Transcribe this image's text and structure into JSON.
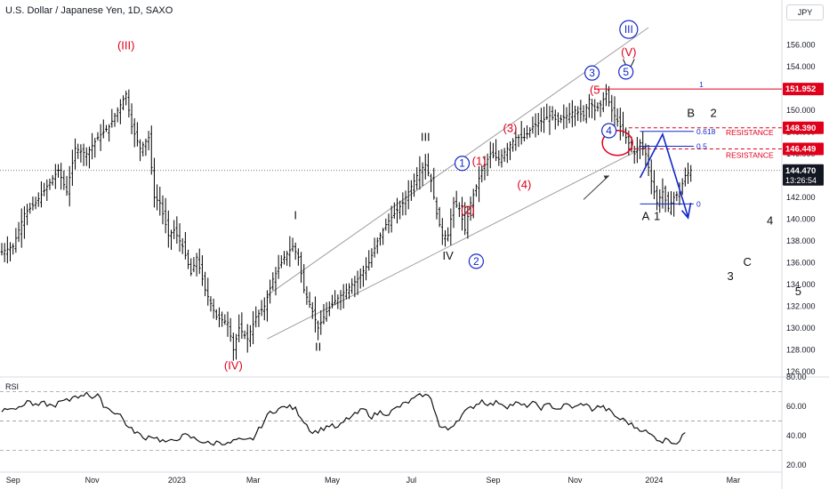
{
  "header": {
    "title": "U.S. Dollar / Japanese Yen, 1D, SAXO",
    "currency": "JPY"
  },
  "colors": {
    "candle": "#000000",
    "channel": "#9e9e9e",
    "red": "#e0001b",
    "blue": "#1328c9",
    "black": "#111111"
  },
  "chart_data": {
    "type": "line",
    "x_ticks": [
      "Sep",
      "Nov",
      "2023",
      "Mar",
      "May",
      "Jul",
      "Sep",
      "Nov",
      "2024",
      "Mar"
    ],
    "price_axis": {
      "ylim": [
        125.5,
        158.5
      ],
      "ticks": [
        "156.000",
        "154.000",
        "152.000",
        "150.000",
        "148.000",
        "146.000",
        "144.000",
        "142.000",
        "140.000",
        "138.000",
        "136.000",
        "134.000",
        "132.000",
        "130.000",
        "128.000",
        "126.000"
      ]
    },
    "price_path": [
      [
        0,
        137.0
      ],
      [
        4,
        137.5
      ],
      [
        8,
        140.5
      ],
      [
        12,
        141.5
      ],
      [
        16,
        143.0
      ],
      [
        20,
        144.5
      ],
      [
        23,
        142.5
      ],
      [
        26,
        146.5
      ],
      [
        30,
        146.0
      ],
      [
        34,
        147.5
      ],
      [
        38,
        148.5
      ],
      [
        41,
        150.0
      ],
      [
        44,
        151.5
      ],
      [
        46,
        148.5
      ],
      [
        49,
        146.5
      ],
      [
        52,
        147.5
      ],
      [
        54,
        142.0
      ],
      [
        56,
        141.5
      ],
      [
        59,
        138.5
      ],
      [
        61,
        139.0
      ],
      [
        64,
        137.5
      ],
      [
        67,
        135.0
      ],
      [
        69,
        136.5
      ],
      [
        72,
        133.5
      ],
      [
        76,
        131.0
      ],
      [
        80,
        130.5
      ],
      [
        82,
        128.0
      ],
      [
        84,
        130.0
      ],
      [
        87,
        129.0
      ],
      [
        90,
        131.0
      ],
      [
        93,
        132.0
      ],
      [
        96,
        134.5
      ],
      [
        100,
        136.5
      ],
      [
        103,
        137.5
      ],
      [
        105,
        136.5
      ],
      [
        107,
        133.5
      ],
      [
        110,
        131.5
      ],
      [
        112,
        130.0
      ],
      [
        115,
        131.5
      ],
      [
        118,
        132.5
      ],
      [
        122,
        133.5
      ],
      [
        126,
        134.5
      ],
      [
        130,
        136.0
      ],
      [
        133,
        138.0
      ],
      [
        136,
        139.5
      ],
      [
        139,
        140.5
      ],
      [
        142,
        141.5
      ],
      [
        145,
        143.0
      ],
      [
        148,
        144.5
      ],
      [
        150,
        145.0
      ],
      [
        152,
        143.5
      ],
      [
        154,
        140.5
      ],
      [
        156,
        138.5
      ],
      [
        158,
        138.5
      ],
      [
        160,
        141.5
      ],
      [
        162,
        141.0
      ],
      [
        164,
        139.0
      ],
      [
        166,
        141.5
      ],
      [
        168,
        143.0
      ],
      [
        170,
        144.5
      ],
      [
        173,
        146.0
      ],
      [
        176,
        145.5
      ],
      [
        179,
        146.5
      ],
      [
        182,
        147.5
      ],
      [
        185,
        147.5
      ],
      [
        188,
        148.5
      ],
      [
        191,
        149.0
      ],
      [
        194,
        149.5
      ],
      [
        197,
        149.0
      ],
      [
        200,
        149.5
      ],
      [
        203,
        150.0
      ],
      [
        206,
        149.5
      ],
      [
        208,
        151.0
      ],
      [
        210,
        150.0
      ],
      [
        212,
        150.5
      ],
      [
        214,
        151.5
      ],
      [
        216,
        150.0
      ],
      [
        218,
        149.0
      ],
      [
        220,
        148.0
      ],
      [
        222,
        147.0
      ],
      [
        224,
        146.0
      ],
      [
        226,
        147.0
      ],
      [
        228,
        146.0
      ],
      [
        230,
        143.5
      ],
      [
        232,
        141.5
      ],
      [
        234,
        142.5
      ],
      [
        236,
        141.0
      ],
      [
        238,
        142.0
      ],
      [
        240,
        142.5
      ],
      [
        242,
        144.0
      ],
      [
        244,
        144.5
      ]
    ],
    "last_price": "144.470",
    "countdown": "13:26:54",
    "levels": {
      "level_1": {
        "price": 151.952,
        "label": "151.952",
        "fib": "1"
      },
      "resistance_high": {
        "price": 148.39,
        "label": "148.390",
        "fib": "0.618",
        "text": "RESISTANCE"
      },
      "resistance_low": {
        "price": 146.449,
        "label": "146.449",
        "fib": "0.5",
        "text": "RESISTANCE"
      },
      "fib_zero": {
        "price": 141.4,
        "fib": "0"
      }
    },
    "wave_labels": [
      {
        "text": "(III)",
        "t": 44,
        "p": 155.6,
        "color": "red"
      },
      {
        "text": "(IV)",
        "t": 82,
        "p": 126.2,
        "color": "red"
      },
      {
        "text": "I",
        "t": 104,
        "p": 140.0,
        "color": "black"
      },
      {
        "text": "II",
        "t": 112,
        "p": 127.9,
        "color": "black"
      },
      {
        "text": "III",
        "t": 150,
        "p": 147.2,
        "color": "black"
      },
      {
        "text": "IV",
        "t": 158,
        "p": 136.3,
        "color": "black"
      },
      {
        "text": "(1)",
        "t": 169,
        "p": 145.0,
        "color": "red"
      },
      {
        "text": "(2)",
        "t": 165,
        "p": 140.5,
        "color": "red"
      },
      {
        "text": "(3)",
        "t": 180,
        "p": 148.0,
        "color": "red"
      },
      {
        "text": "(4)",
        "t": 185,
        "p": 142.8,
        "color": "red"
      },
      {
        "text": "(5",
        "t": 210,
        "p": 151.5,
        "color": "red"
      },
      {
        "text": "(V)",
        "t": 222,
        "p": 155.0,
        "color": "red"
      },
      {
        "text": "1",
        "t": 232,
        "p": 139.9,
        "color": "black"
      },
      {
        "text": "A",
        "t": 228,
        "p": 139.9,
        "color": "black"
      },
      {
        "text": "B",
        "t": 244,
        "p": 149.4,
        "color": "black"
      },
      {
        "text": "2",
        "t": 252,
        "p": 149.4,
        "color": "black"
      },
      {
        "text": "3",
        "t": 258,
        "p": 134.4,
        "color": "black"
      },
      {
        "text": "4",
        "t": 272,
        "p": 139.5,
        "color": "black"
      },
      {
        "text": "5",
        "t": 282,
        "p": 133.0,
        "color": "black"
      },
      {
        "text": "C",
        "t": 264,
        "p": 135.7,
        "color": "black"
      }
    ],
    "circled_labels": [
      {
        "text": "1",
        "t": 163,
        "p": 144.8
      },
      {
        "text": "2",
        "t": 168,
        "p": 135.8
      },
      {
        "text": "3",
        "t": 209,
        "p": 153.1
      },
      {
        "text": "4",
        "t": 215,
        "p": 147.8
      },
      {
        "text": "5",
        "t": 221,
        "p": 153.2
      },
      {
        "text": "III",
        "t": 222,
        "p": 157.1
      }
    ],
    "rsi": {
      "label": "RSI",
      "ylim": [
        15,
        80
      ],
      "ticks": [
        "80.00",
        "60.00",
        "40.00",
        "20.00"
      ],
      "path": [
        [
          0,
          57
        ],
        [
          3,
          60
        ],
        [
          6,
          58
        ],
        [
          9,
          64
        ],
        [
          12,
          60
        ],
        [
          15,
          62
        ],
        [
          18,
          60
        ],
        [
          21,
          63
        ],
        [
          24,
          64
        ],
        [
          26,
          68
        ],
        [
          28,
          66
        ],
        [
          30,
          70
        ],
        [
          32,
          66
        ],
        [
          34,
          67
        ],
        [
          36,
          61
        ],
        [
          38,
          58
        ],
        [
          40,
          56
        ],
        [
          42,
          54
        ],
        [
          45,
          45
        ],
        [
          48,
          42
        ],
        [
          50,
          38
        ],
        [
          53,
          40
        ],
        [
          56,
          37
        ],
        [
          59,
          35
        ],
        [
          62,
          38
        ],
        [
          65,
          40
        ],
        [
          68,
          38
        ],
        [
          71,
          36
        ],
        [
          74,
          34
        ],
        [
          77,
          36
        ],
        [
          80,
          34
        ],
        [
          83,
          37
        ],
        [
          86,
          36
        ],
        [
          89,
          38
        ],
        [
          92,
          47
        ],
        [
          95,
          56
        ],
        [
          98,
          58
        ],
        [
          101,
          60
        ],
        [
          104,
          58
        ],
        [
          107,
          50
        ],
        [
          110,
          42
        ],
        [
          113,
          44
        ],
        [
          116,
          47
        ],
        [
          119,
          45
        ],
        [
          122,
          51
        ],
        [
          125,
          54
        ],
        [
          128,
          58
        ],
        [
          131,
          53
        ],
        [
          134,
          56
        ],
        [
          137,
          55
        ],
        [
          140,
          59
        ],
        [
          143,
          62
        ],
        [
          146,
          65
        ],
        [
          149,
          68
        ],
        [
          152,
          66
        ],
        [
          155,
          46
        ],
        [
          158,
          44
        ],
        [
          161,
          50
        ],
        [
          164,
          56
        ],
        [
          167,
          60
        ],
        [
          170,
          64
        ],
        [
          173,
          61
        ],
        [
          176,
          63
        ],
        [
          179,
          60
        ],
        [
          182,
          62
        ],
        [
          185,
          60
        ],
        [
          188,
          62
        ],
        [
          191,
          59
        ],
        [
          194,
          61
        ],
        [
          197,
          58
        ],
        [
          200,
          61
        ],
        [
          203,
          59
        ],
        [
          206,
          62
        ],
        [
          209,
          58
        ],
        [
          212,
          60
        ],
        [
          215,
          57
        ],
        [
          218,
          52
        ],
        [
          221,
          50
        ],
        [
          224,
          46
        ],
        [
          227,
          44
        ],
        [
          230,
          40
        ],
        [
          232,
          38
        ],
        [
          234,
          36
        ],
        [
          236,
          38
        ],
        [
          238,
          35
        ],
        [
          240,
          36
        ],
        [
          242,
          42
        ]
      ]
    }
  }
}
